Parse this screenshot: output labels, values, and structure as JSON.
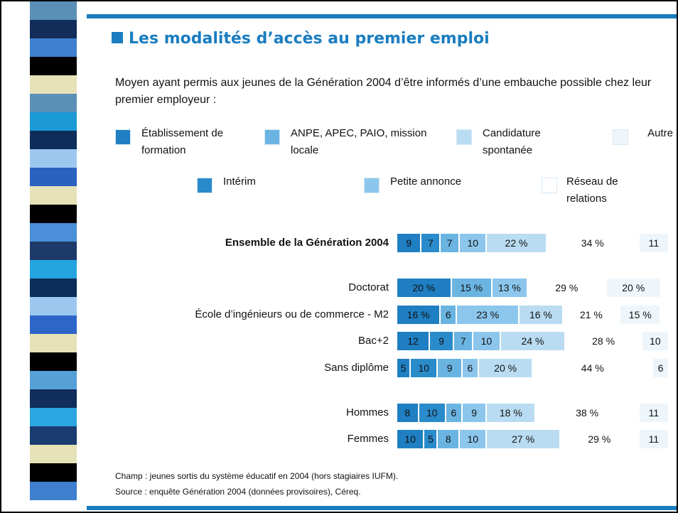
{
  "chart_data": {
    "type": "stacked-bar",
    "title": "Les modalités d’accès au premier emploi",
    "subtitle": "Moyen ayant permis aux jeunes de la Génération 2004 d’être informés d’une embauche possible chez leur premier employeur :",
    "categories": [
      "Ensemble de la Génération 2004",
      "Doctorat",
      "École d’ingénieurs ou de commerce - M2",
      "Bac+2",
      "Sans diplôme",
      "Hommes",
      "Femmes"
    ],
    "series": [
      {
        "name": "Établissement de formation",
        "color": "#1f7fc2",
        "values": [
          9,
          20,
          16,
          12,
          5,
          8,
          10
        ],
        "value_labels": [
          "9",
          "20 %",
          "16 %",
          "12",
          "5",
          "8",
          "10"
        ]
      },
      {
        "name": "Intérim",
        "color": "#2a8bcb",
        "values": [
          7,
          null,
          null,
          9,
          10,
          10,
          5
        ],
        "value_labels": [
          "7",
          null,
          null,
          "9",
          "10",
          "10",
          "5"
        ]
      },
      {
        "name": "ANPE, APEC, PAIO, mission locale",
        "color": "#6ab4e2",
        "values": [
          7,
          15,
          6,
          7,
          9,
          6,
          8
        ],
        "value_labels": [
          "7",
          "15 %",
          "6",
          "7",
          "9",
          "6",
          "8"
        ]
      },
      {
        "name": "Petite annonce",
        "color": "#8cc6ec",
        "values": [
          10,
          13,
          23,
          10,
          6,
          9,
          10
        ],
        "value_labels": [
          "10",
          "13 %",
          "23 %",
          "10",
          "6",
          "9",
          "10"
        ]
      },
      {
        "name": "Candidature spontanée",
        "color": "#b9dcf2",
        "values": [
          22,
          null,
          16,
          24,
          20,
          18,
          27
        ],
        "value_labels": [
          "22 %",
          null,
          "16 %",
          "24 %",
          "20 %",
          "18 %",
          "27 %"
        ]
      },
      {
        "name": "Réseau de relations",
        "color": "#ffffff",
        "values": [
          34,
          29,
          21,
          28,
          44,
          38,
          29
        ],
        "value_labels": [
          "34 %",
          "29 %",
          "21 %",
          "28 %",
          "44 %",
          "38 %",
          "29 %"
        ]
      },
      {
        "name": "Autre",
        "color": "#eef6fc",
        "values": [
          11,
          20,
          15,
          10,
          6,
          11,
          11
        ],
        "value_labels": [
          "11",
          "20 %",
          "15 %",
          "10",
          "6",
          "11",
          "11"
        ]
      }
    ],
    "notes": [
      "Champ : jeunes sortis du système éducatif en 2004 (hors stagiaires IUFM).",
      "Source : enquête Génération 2004 (données provisoires), Céreq."
    ]
  }
}
